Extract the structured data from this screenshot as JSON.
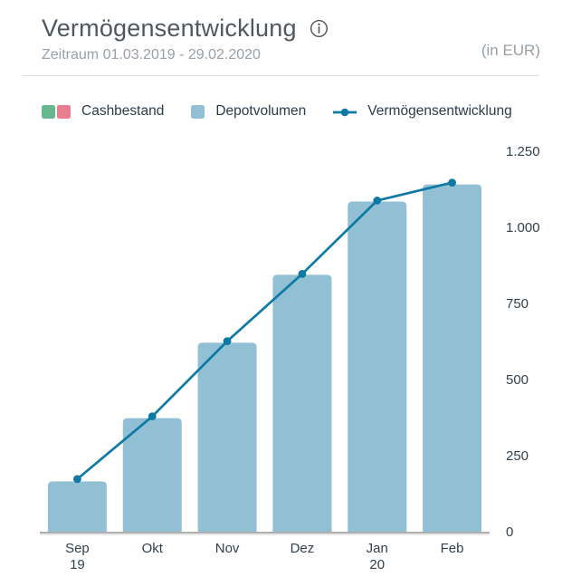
{
  "header": {
    "title": "Vermögensentwicklung",
    "subtitle": "Zeitraum 01.03.2019 - 29.02.2020",
    "unit_label": "(in EUR)",
    "info_icon": "info-circle"
  },
  "legend": {
    "position": "top",
    "items": [
      {
        "id": "cashbestand",
        "label": "Cashbestand",
        "swatches": [
          "#68b88f",
          "#e87e90"
        ]
      },
      {
        "id": "depotvolumen",
        "label": "Depotvolumen",
        "swatches": [
          "#91bfd4"
        ]
      },
      {
        "id": "vermoegensentwicklung",
        "label": "Vermögensentwicklung",
        "marker": "line-dot",
        "marker_color": "#0d7aa6"
      }
    ]
  },
  "colors": {
    "bar": "#91bfd4",
    "line": "#0d7aa6",
    "cash_green": "#68b88f",
    "cash_red": "#e87e90",
    "axis_line": "#aeaeae",
    "axis_shadow": "#e2e2e2",
    "tick_text": "#33414b",
    "muted_text": "#99a0a6",
    "title_text": "#4f585e",
    "divider": "#dcdcdc"
  },
  "chart_data": {
    "type": "bar",
    "subtype": "bar-line-combo",
    "title": "Vermögensentwicklung",
    "period": "Zeitraum 01.03.2019 - 29.02.2020",
    "unit": "EUR",
    "grid": false,
    "legend_position": "top",
    "categories": [
      "Sep",
      "Okt",
      "Nov",
      "Dez",
      "Jan",
      "Feb"
    ],
    "category_year_labels": [
      "19",
      "",
      "",
      "",
      "20",
      ""
    ],
    "ylim": [
      0,
      1250
    ],
    "yticks": [
      {
        "value": 0,
        "label": "0"
      },
      {
        "value": 250,
        "label": "250"
      },
      {
        "value": 500,
        "label": "500"
      },
      {
        "value": 750,
        "label": "750"
      },
      {
        "value": 1000,
        "label": "1.000"
      },
      {
        "value": 1250,
        "label": "1.250"
      }
    ],
    "series": [
      {
        "name": "Depotvolumen",
        "type": "bar",
        "color": "#91bfd4",
        "values": [
          165,
          373,
          621,
          844,
          1085,
          1141
        ]
      },
      {
        "name": "Vermögensentwicklung",
        "type": "line",
        "color": "#0d7aa6",
        "values": [
          173,
          379,
          626,
          847,
          1088,
          1147
        ]
      }
    ],
    "legend_only_series": [
      {
        "name": "Cashbestand",
        "colors": [
          "#68b88f",
          "#e87e90"
        ]
      }
    ]
  }
}
